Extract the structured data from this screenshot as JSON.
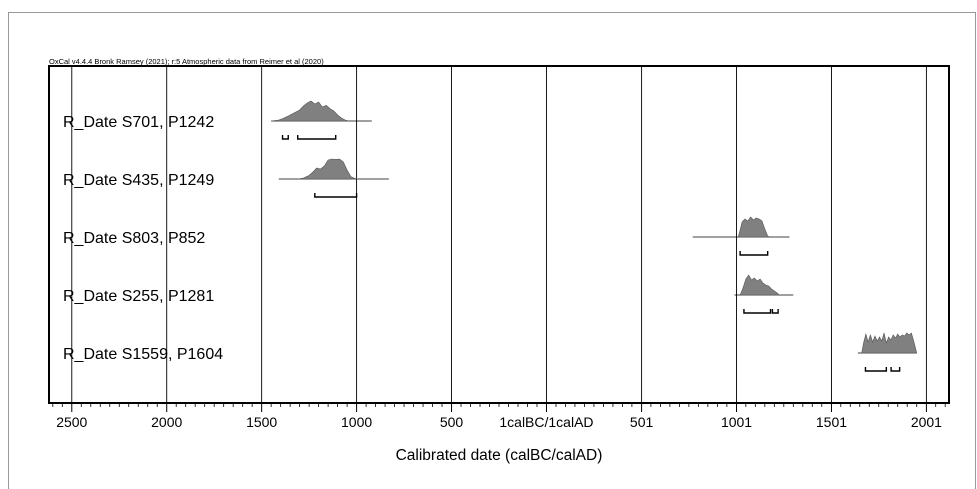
{
  "credit": "OxCal v4.4.4 Bronk Ramsey (2021); r:5 Atmospheric data from Reimer et al (2020)",
  "chart_data": {
    "type": "calibration-plot",
    "xlabel": "Calibrated date (calBC/calAD)",
    "xlim": [
      2620,
      2120
    ],
    "x_axis_note": "OxCal calendar axis: value = calendar year with calBC negative; x_axis_value runs from -2620 to 2120",
    "x_ticks": [
      {
        "label": "2500",
        "value": -2500
      },
      {
        "label": "2000",
        "value": -2000
      },
      {
        "label": "1500",
        "value": -1500
      },
      {
        "label": "1000",
        "value": -1000
      },
      {
        "label": "500",
        "value": -500
      },
      {
        "label": "1calBC/1calAD",
        "value": 0
      },
      {
        "label": "501",
        "value": 501
      },
      {
        "label": "1001",
        "value": 1001
      },
      {
        "label": "1501",
        "value": 1501
      },
      {
        "label": "2001",
        "value": 2001
      }
    ],
    "grid": true,
    "series": [
      {
        "name": "R_Date S701, P1242",
        "line_range": [
          -1450,
          -920
        ],
        "distribution": [
          [
            -1450,
            0
          ],
          [
            -1410,
            0.05
          ],
          [
            -1390,
            0.12
          ],
          [
            -1360,
            0.25
          ],
          [
            -1330,
            0.4
          ],
          [
            -1300,
            0.55
          ],
          [
            -1280,
            0.75
          ],
          [
            -1260,
            0.9
          ],
          [
            -1240,
            1.0
          ],
          [
            -1220,
            0.85
          ],
          [
            -1200,
            0.95
          ],
          [
            -1180,
            0.7
          ],
          [
            -1160,
            0.78
          ],
          [
            -1140,
            0.62
          ],
          [
            -1120,
            0.5
          ],
          [
            -1100,
            0.3
          ],
          [
            -1080,
            0.15
          ],
          [
            -1060,
            0.05
          ],
          [
            -1040,
            0
          ]
        ],
        "ranges": [
          [
            -1390,
            -1360
          ],
          [
            -1310,
            -1110
          ]
        ]
      },
      {
        "name": "R_Date S435, P1249",
        "line_range": [
          -1410,
          -830
        ],
        "distribution": [
          [
            -1310,
            0
          ],
          [
            -1280,
            0.05
          ],
          [
            -1250,
            0.18
          ],
          [
            -1230,
            0.35
          ],
          [
            -1210,
            0.55
          ],
          [
            -1190,
            0.5
          ],
          [
            -1170,
            0.65
          ],
          [
            -1150,
            0.95
          ],
          [
            -1130,
            1.0
          ],
          [
            -1110,
            0.98
          ],
          [
            -1090,
            1.0
          ],
          [
            -1070,
            0.85
          ],
          [
            -1050,
            0.45
          ],
          [
            -1030,
            0.12
          ],
          [
            -1010,
            0.03
          ],
          [
            -990,
            0
          ]
        ],
        "ranges": [
          [
            -1220,
            -1000
          ]
        ]
      },
      {
        "name": "R_Date S803, P852",
        "line_range": [
          770,
          1280
        ],
        "distribution": [
          [
            1010,
            0
          ],
          [
            1020,
            0.35
          ],
          [
            1030,
            0.75
          ],
          [
            1045,
            0.9
          ],
          [
            1060,
            0.8
          ],
          [
            1075,
            1.0
          ],
          [
            1090,
            0.85
          ],
          [
            1105,
            0.95
          ],
          [
            1120,
            0.9
          ],
          [
            1135,
            0.8
          ],
          [
            1150,
            0.4
          ],
          [
            1165,
            0.05
          ],
          [
            1175,
            0
          ]
        ],
        "ranges": [
          [
            1020,
            1165
          ]
        ]
      },
      {
        "name": "R_Date S255, P1281",
        "line_range": [
          990,
          1300
        ],
        "distribution": [
          [
            1020,
            0
          ],
          [
            1035,
            0.35
          ],
          [
            1050,
            0.8
          ],
          [
            1065,
            1.0
          ],
          [
            1080,
            0.75
          ],
          [
            1095,
            0.85
          ],
          [
            1110,
            0.7
          ],
          [
            1125,
            0.8
          ],
          [
            1140,
            0.6
          ],
          [
            1155,
            0.5
          ],
          [
            1170,
            0.45
          ],
          [
            1185,
            0.3
          ],
          [
            1200,
            0.2
          ],
          [
            1215,
            0.1
          ],
          [
            1225,
            0
          ]
        ],
        "ranges": [
          [
            1040,
            1180
          ],
          [
            1190,
            1220
          ]
        ]
      },
      {
        "name": "R_Date S1559, P1604",
        "line_range": [
          1640,
          1950
        ],
        "distribution": [
          [
            1660,
            0
          ],
          [
            1670,
            0.5
          ],
          [
            1682,
            0.95
          ],
          [
            1694,
            0.55
          ],
          [
            1706,
            0.9
          ],
          [
            1718,
            0.55
          ],
          [
            1730,
            0.85
          ],
          [
            1742,
            0.6
          ],
          [
            1754,
            0.8
          ],
          [
            1766,
            0.6
          ],
          [
            1778,
            1.0
          ],
          [
            1790,
            0.5
          ],
          [
            1802,
            0.8
          ],
          [
            1814,
            0.65
          ],
          [
            1826,
            0.9
          ],
          [
            1838,
            0.75
          ],
          [
            1850,
            0.95
          ],
          [
            1862,
            0.8
          ],
          [
            1874,
            0.9
          ],
          [
            1886,
            0.85
          ],
          [
            1898,
            1.0
          ],
          [
            1910,
            0.9
          ],
          [
            1922,
            1.0
          ],
          [
            1934,
            0.6
          ],
          [
            1950,
            0
          ]
        ],
        "ranges": [
          [
            1680,
            1790
          ],
          [
            1815,
            1860
          ]
        ]
      }
    ]
  }
}
